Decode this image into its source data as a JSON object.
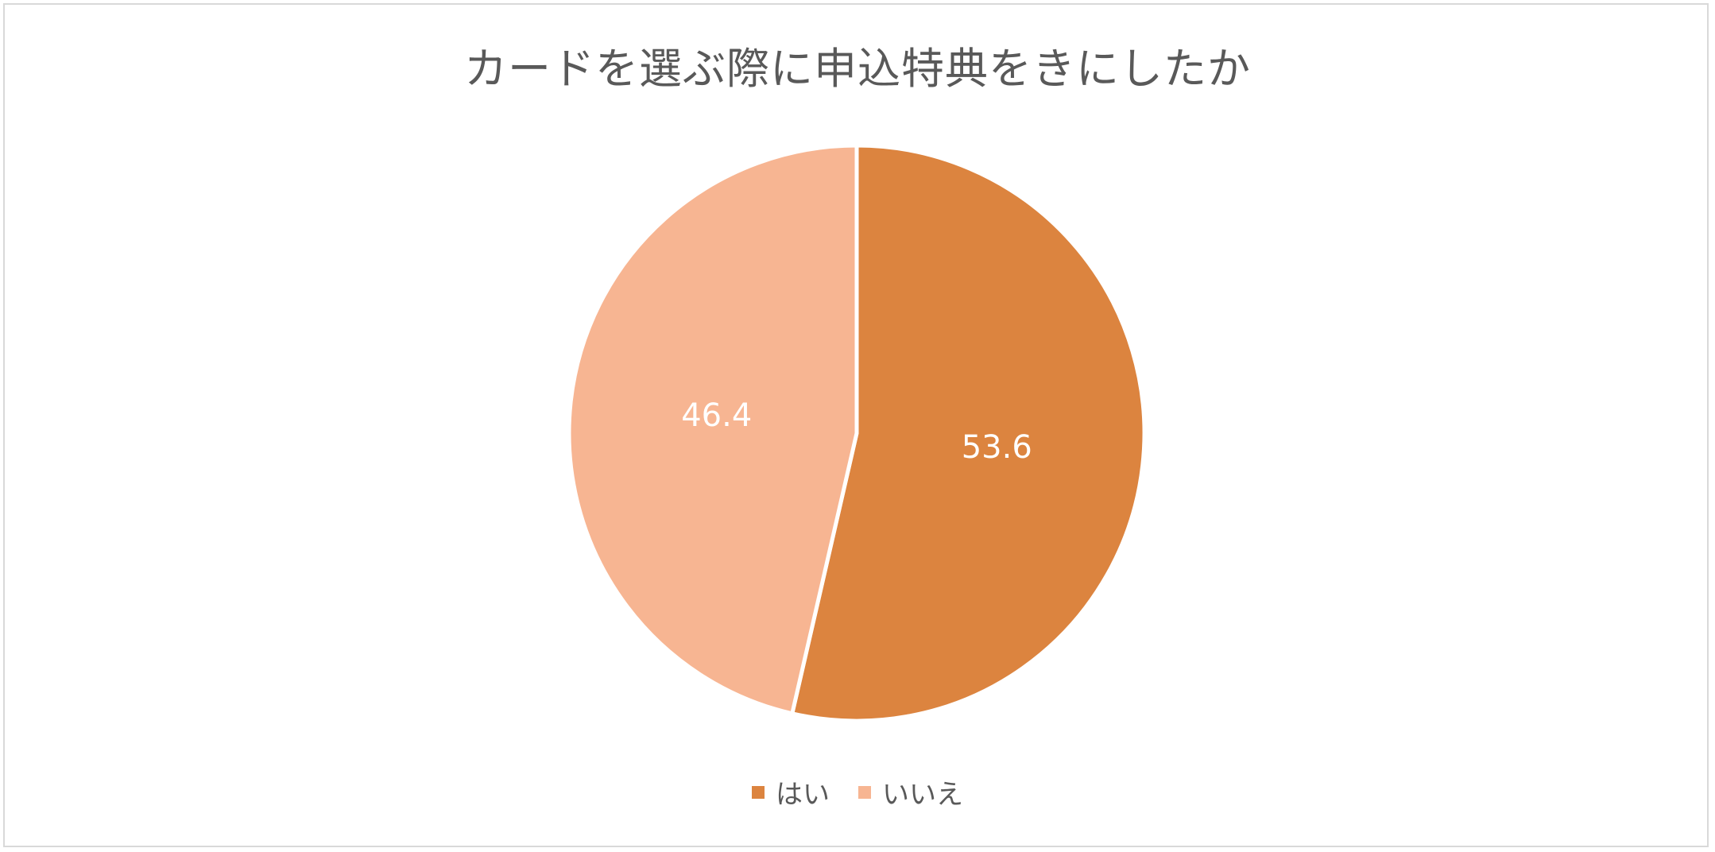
{
  "chart_data": {
    "type": "pie",
    "title": "カードを選ぶ際に申込特典をきにしたか",
    "slices": [
      {
        "label": "はい",
        "value": 53.6,
        "data_label": "53.6",
        "color": "#DC843F"
      },
      {
        "label": "いいえ",
        "value": 46.4,
        "data_label": "46.4",
        "color": "#F7B592"
      }
    ],
    "start_angle": "12 o'clock",
    "direction": "clockwise",
    "legend_position": "bottom",
    "data_label_color": "#FFFFFF",
    "slice_border_color": "#FFFFFF"
  }
}
